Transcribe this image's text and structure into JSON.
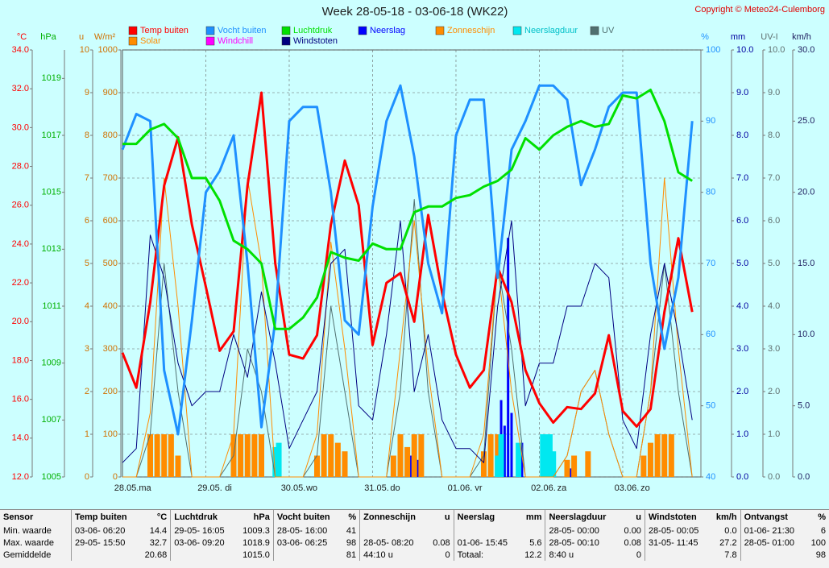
{
  "copyright": "Copyright © Meteo24-Culemborg",
  "chart_data": {
    "type": "line",
    "title": "Week 28-05-18 - 03-06-18 (WK22)",
    "xlim": [
      0,
      166.5
    ],
    "xticks": [
      {
        "value": 0,
        "label": "28.05."
      },
      {
        "value": 24,
        "label": "29.05."
      },
      {
        "value": 48,
        "label": "30.05."
      },
      {
        "value": 72,
        "label": "31.05."
      },
      {
        "value": 96,
        "label": "01.06."
      },
      {
        "value": 120,
        "label": "02.06."
      },
      {
        "value": 144,
        "label": "03.06."
      }
    ],
    "weekdays": [
      "ma",
      "di",
      "wo",
      "do",
      "vr",
      "za",
      "zo"
    ],
    "axes": [
      {
        "label": "°C",
        "color": "#ff0000",
        "side": "left",
        "lim": [
          12,
          34
        ],
        "ticks": [
          {
            "value": 12,
            "label": "12.0"
          },
          {
            "value": 14,
            "label": "14.0"
          },
          {
            "value": 16,
            "label": "16.0"
          },
          {
            "value": 18,
            "label": "18.0"
          },
          {
            "value": 20,
            "label": "20.0"
          },
          {
            "value": 22,
            "label": "22.0"
          },
          {
            "value": 24,
            "label": "24.0"
          },
          {
            "value": 26,
            "label": "26.0"
          },
          {
            "value": 28,
            "label": "28.0"
          },
          {
            "value": 30,
            "label": "30.0"
          },
          {
            "value": 32,
            "label": "32.0"
          },
          {
            "value": 34,
            "label": "34.0"
          }
        ]
      },
      {
        "label": "hPa",
        "color": "#00b000",
        "side": "left",
        "lim": [
          1005,
          1020
        ],
        "ticks": [
          1005,
          1007,
          1009,
          1011,
          1013,
          1015,
          1017,
          1019
        ]
      },
      {
        "label": "u",
        "color": "#d07000",
        "side": "left",
        "lim": [
          0,
          10
        ],
        "ticks": [
          0,
          1,
          2,
          3,
          4,
          5,
          6,
          7,
          8,
          9,
          10
        ],
        "grid": true
      },
      {
        "label": "W/m²",
        "color": "#d07000",
        "side": "left",
        "lim": [
          0,
          1000
        ],
        "ticks": [
          0,
          100,
          200,
          300,
          400,
          500,
          600,
          700,
          800,
          900,
          1000
        ]
      },
      {
        "label": "%",
        "color": "#1e90ff",
        "side": "right",
        "lim": [
          40,
          100
        ],
        "ticks": [
          40,
          50,
          60,
          70,
          80,
          90,
          100
        ]
      },
      {
        "label": "mm",
        "color": "#0000a0",
        "side": "right",
        "lim": [
          0,
          10
        ],
        "ticks": [
          {
            "value": 0,
            "label": "0.0"
          },
          {
            "value": 1,
            "label": "1.0"
          },
          {
            "value": 2,
            "label": "2.0"
          },
          {
            "value": 3,
            "label": "3.0"
          },
          {
            "value": 4,
            "label": "4.0"
          },
          {
            "value": 5,
            "label": "5.0"
          },
          {
            "value": 6,
            "label": "6.0"
          },
          {
            "value": 7,
            "label": "7.0"
          },
          {
            "value": 8,
            "label": "8.0"
          },
          {
            "value": 9,
            "label": "9.0"
          },
          {
            "value": 10,
            "label": "10.0"
          }
        ]
      },
      {
        "label": "UV-I",
        "color": "#607070",
        "side": "right",
        "lim": [
          0,
          10
        ],
        "ticks": [
          {
            "value": 0,
            "label": "0.0"
          },
          {
            "value": 1,
            "label": "1.0"
          },
          {
            "value": 2,
            "label": "2.0"
          },
          {
            "value": 3,
            "label": "3.0"
          },
          {
            "value": 4,
            "label": "4.0"
          },
          {
            "value": 5,
            "label": "5.0"
          },
          {
            "value": 6,
            "label": "6.0"
          },
          {
            "value": 7,
            "label": "7.0"
          },
          {
            "value": 8,
            "label": "8.0"
          },
          {
            "value": 9,
            "label": "9.0"
          },
          {
            "value": 10,
            "label": "10.0"
          }
        ]
      },
      {
        "label": "km/h",
        "color": "#202060",
        "side": "right",
        "lim": [
          0,
          30
        ],
        "ticks": [
          {
            "value": 0,
            "label": "0.0"
          },
          {
            "value": 5,
            "label": "5.0"
          },
          {
            "value": 10,
            "label": "10.0"
          },
          {
            "value": 15,
            "label": "15.0"
          },
          {
            "value": 20,
            "label": "20.0"
          },
          {
            "value": 25,
            "label": "25.0"
          },
          {
            "value": 30,
            "label": "30.0"
          }
        ]
      }
    ],
    "series": [
      {
        "name": "Temp buiten",
        "color": "#ff0000",
        "axis": 0,
        "style": "thick",
        "x": [
          0,
          4,
          8,
          12,
          16,
          20,
          24,
          28,
          32,
          36,
          40,
          44,
          48,
          52,
          56,
          60,
          64,
          68,
          72,
          76,
          80,
          84,
          88,
          92,
          96,
          100,
          104,
          108,
          112,
          116,
          120,
          124,
          128,
          132,
          136,
          140,
          144,
          148,
          152,
          156,
          160,
          164
        ],
        "values": [
          18.4,
          16.6,
          21,
          27,
          29.5,
          25,
          21.8,
          18.5,
          19.5,
          27,
          31.8,
          23,
          18.3,
          18.1,
          19.3,
          25,
          28.3,
          26,
          18.8,
          22,
          22.5,
          20,
          25.5,
          21.5,
          18.3,
          16.6,
          17.5,
          22.8,
          21,
          17.5,
          15.8,
          14.8,
          15.6,
          15.5,
          16.3,
          19.3,
          15.4,
          14.6,
          15.5,
          20.5,
          24.3,
          20.5
        ]
      },
      {
        "name": "Vocht buiten",
        "color": "#1e90ff",
        "axis": 4,
        "style": "thick",
        "x": [
          0,
          4,
          8,
          12,
          16,
          20,
          24,
          28,
          32,
          36,
          40,
          44,
          48,
          52,
          56,
          60,
          64,
          68,
          72,
          76,
          80,
          84,
          88,
          92,
          96,
          100,
          104,
          108,
          112,
          116,
          120,
          124,
          128,
          132,
          136,
          140,
          144,
          148,
          152,
          156,
          160,
          164
        ],
        "values": [
          86,
          91,
          90,
          55,
          46,
          62,
          80,
          83,
          88,
          70,
          47,
          62,
          90,
          92,
          92,
          80,
          62,
          60,
          78,
          90,
          95,
          85,
          70,
          63,
          88,
          93,
          93,
          68,
          86,
          90,
          95,
          95,
          93,
          81,
          86,
          92,
          94,
          94,
          70,
          58,
          68,
          90
        ]
      },
      {
        "name": "Luchtdruk",
        "color": "#00e000",
        "axis": 1,
        "style": "thick",
        "x": [
          0,
          4,
          8,
          12,
          16,
          20,
          24,
          28,
          32,
          36,
          40,
          44,
          48,
          52,
          56,
          60,
          64,
          68,
          72,
          76,
          80,
          84,
          88,
          92,
          96,
          100,
          104,
          108,
          112,
          116,
          120,
          124,
          128,
          132,
          136,
          140,
          144,
          148,
          152,
          156,
          160,
          164
        ],
        "values": [
          1016.7,
          1016.7,
          1017.2,
          1017.4,
          1016.9,
          1015.5,
          1015.5,
          1014.7,
          1013.3,
          1013,
          1012.5,
          1010.2,
          1010.2,
          1010.6,
          1011.3,
          1012.9,
          1012.7,
          1012.6,
          1013.2,
          1013,
          1013,
          1014.3,
          1014.5,
          1014.5,
          1014.8,
          1014.9,
          1015.2,
          1015.4,
          1015.8,
          1016.9,
          1016.5,
          1017,
          1017.3,
          1017.5,
          1017.3,
          1017.4,
          1018.4,
          1018.3,
          1018.6,
          1017.5,
          1015.7,
          1015.4
        ]
      },
      {
        "name": "Neerslag",
        "color": "#0000ff",
        "axis": 5,
        "style": "bar",
        "x": [
          44,
          45,
          83,
          85,
          109,
          110,
          111,
          112,
          115,
          129
        ],
        "values": [
          0.6,
          0.3,
          0.5,
          0.4,
          1.8,
          1.2,
          5.6,
          1.5,
          0.8,
          0.2
        ]
      },
      {
        "name": "Zonneschijn",
        "color": "#ff8c00",
        "axis": 2,
        "style": "bar",
        "x": [
          8,
          10,
          12,
          14,
          16,
          32,
          34,
          36,
          38,
          40,
          56,
          58,
          60,
          62,
          64,
          78,
          80,
          82,
          84,
          86,
          104,
          106,
          108,
          128,
          130,
          134,
          150,
          152,
          154,
          156,
          158
        ],
        "values": [
          1,
          1,
          1,
          1,
          0.5,
          1,
          1,
          1,
          1,
          1,
          0.5,
          1,
          1,
          0.8,
          0.6,
          0.5,
          1,
          0.7,
          1,
          1,
          0.6,
          1,
          1,
          0.4,
          0.5,
          0.6,
          0.5,
          0.8,
          1,
          1,
          1
        ]
      },
      {
        "name": "Neerslagduur",
        "color": "#00e8f0",
        "axis": 2,
        "style": "bar",
        "x": [
          44,
          45,
          108,
          109,
          114,
          121,
          122,
          123,
          124
        ],
        "values": [
          0.7,
          0.8,
          0.5,
          1,
          0.8,
          1,
          1,
          1,
          0.6
        ]
      },
      {
        "name": "UV",
        "color": "#507070",
        "axis": 6,
        "style": "thin",
        "x": [
          0,
          4,
          8,
          12,
          16,
          20,
          24,
          28,
          32,
          36,
          40,
          44,
          48,
          52,
          56,
          60,
          64,
          68,
          72,
          76,
          80,
          84,
          88,
          92,
          96,
          100,
          104,
          108,
          112,
          116,
          120,
          124,
          128,
          132,
          136,
          140,
          144,
          148,
          152,
          156,
          160,
          164
        ],
        "values": [
          0,
          0,
          1,
          5,
          2,
          0,
          0,
          0,
          0.5,
          3,
          2,
          0,
          0,
          0,
          0.5,
          4,
          2,
          0,
          0,
          0,
          2,
          6.5,
          2,
          0,
          0,
          0,
          0.5,
          5,
          3,
          0,
          0,
          0,
          0.5,
          2,
          2.5,
          1,
          0,
          0,
          2,
          5,
          2,
          0
        ]
      },
      {
        "name": "Solar",
        "color": "#ff8c00",
        "axis": 3,
        "style": "thin",
        "x": [
          0,
          4,
          8,
          12,
          16,
          20,
          24,
          28,
          32,
          36,
          40,
          44,
          48,
          52,
          56,
          60,
          64,
          68,
          72,
          76,
          80,
          84,
          88,
          92,
          96,
          100,
          104,
          108,
          112,
          116,
          120,
          124,
          128,
          132,
          136,
          140,
          144,
          148,
          152,
          156,
          160,
          164
        ],
        "values": [
          0,
          0,
          150,
          700,
          400,
          0,
          0,
          0,
          100,
          700,
          500,
          0,
          0,
          0,
          100,
          550,
          300,
          0,
          0,
          0,
          300,
          600,
          250,
          0,
          0,
          0,
          100,
          500,
          200,
          0,
          0,
          0,
          50,
          200,
          250,
          100,
          0,
          0,
          200,
          700,
          300,
          0
        ]
      },
      {
        "name": "Windchill",
        "color": "#ff00ff",
        "axis": 0,
        "style": "thin",
        "x": [],
        "values": []
      },
      {
        "name": "Windstoten",
        "color": "#000080",
        "axis": 7,
        "style": "thin",
        "x": [
          0,
          4,
          8,
          12,
          16,
          20,
          24,
          28,
          32,
          36,
          40,
          44,
          48,
          52,
          56,
          60,
          64,
          68,
          72,
          76,
          80,
          84,
          88,
          92,
          96,
          100,
          104,
          108,
          112,
          116,
          120,
          124,
          128,
          132,
          136,
          140,
          144,
          148,
          152,
          156,
          160,
          164
        ],
        "values": [
          1,
          2,
          17,
          14,
          8,
          5,
          6,
          6,
          10,
          7,
          13,
          8,
          2,
          4,
          6,
          15,
          16,
          5,
          4,
          10,
          18,
          6,
          10,
          4,
          2,
          2,
          1,
          12,
          18,
          5,
          8,
          8,
          12,
          12,
          15,
          14,
          4,
          2,
          10,
          15,
          10,
          4
        ]
      }
    ]
  },
  "table": {
    "sensor": "Sensor",
    "columns": [
      {
        "name": "Temp buiten",
        "unit": "°C"
      },
      {
        "name": "Luchtdruk",
        "unit": "hPa"
      },
      {
        "name": "Vocht buiten",
        "unit": "%"
      },
      {
        "name": "Zonneschijn",
        "unit": "u"
      },
      {
        "name": "Neerslag",
        "unit": "mm"
      },
      {
        "name": "Neerslagduur",
        "unit": "u"
      },
      {
        "name": "Windstoten",
        "unit": "km/h"
      },
      {
        "name": "Ontvangst",
        "unit": "%"
      }
    ],
    "rows": [
      {
        "label": "Min. waarde",
        "cells": [
          [
            "03-06- 06:20",
            "14.4"
          ],
          [
            "29-05- 16:05",
            "1009.3"
          ],
          [
            "28-05- 16:00",
            "41"
          ],
          [
            null,
            null
          ],
          [
            null,
            null
          ],
          [
            "28-05- 00:00",
            "0.00"
          ],
          [
            "28-05- 00:05",
            "0.0"
          ],
          [
            "01-06- 21:30",
            "6"
          ]
        ]
      },
      {
        "label": "Max. waarde",
        "cells": [
          [
            "29-05- 15:50",
            "32.7"
          ],
          [
            "03-06- 09:20",
            "1018.9"
          ],
          [
            "03-06- 06:25",
            "98"
          ],
          [
            "28-05- 08:20",
            "0.08"
          ],
          [
            "01-06- 15:45",
            "5.6"
          ],
          [
            "28-05- 00:10",
            "0.08"
          ],
          [
            "31-05- 11:45",
            "27.2"
          ],
          [
            "28-05- 01:00",
            "100"
          ]
        ]
      },
      {
        "label": "Gemiddelde",
        "cells": [
          [
            null,
            "20.68"
          ],
          [
            null,
            "1015.0"
          ],
          [
            null,
            "81"
          ],
          [
            "44:10 u",
            "0"
          ],
          [
            "Totaal:",
            "12.2"
          ],
          [
            "8:40 u",
            "0"
          ],
          [
            null,
            "7.8"
          ],
          [
            null,
            "98"
          ]
        ]
      }
    ]
  }
}
